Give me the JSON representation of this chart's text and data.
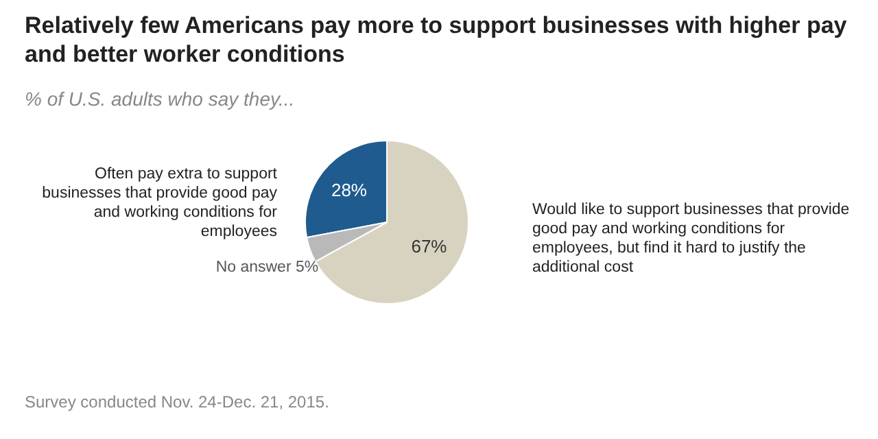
{
  "chart_data": {
    "type": "pie",
    "title": "Relatively few Americans pay more to support businesses with higher pay and better worker conditions",
    "subtitle": "% of U.S. adults who say they...",
    "categories": [
      "Often pay extra to support businesses that provide good pay and working conditions for employees",
      "Would like to support businesses that provide good pay and working conditions for employees, but find it hard to justify the additional cost",
      "No answer"
    ],
    "values": [
      28,
      67,
      5
    ],
    "colors": [
      "#1f5b8e",
      "#d8d3c1",
      "#b9b9b9"
    ],
    "value_labels": [
      "28%",
      "67%",
      "5%"
    ],
    "annotations": [
      "Survey conducted Nov. 24-Dec. 21, 2015."
    ]
  }
}
